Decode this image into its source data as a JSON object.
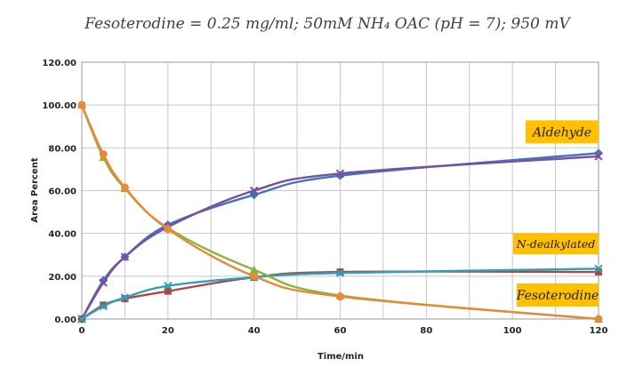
{
  "chart_data": {
    "type": "line",
    "title": "Fesoterodine = 0.25 mg/ml; 50mM NH₄ OAC (pH = 7); 950 mV",
    "xlabel": "Time/min",
    "ylabel": "Area Percent",
    "xlim": [
      0,
      120
    ],
    "ylim": [
      0,
      120
    ],
    "xticks": [
      "0",
      "20",
      "40",
      "60",
      "80",
      "100",
      "120"
    ],
    "yticks": [
      "0.00",
      "20.00",
      "40.00",
      "60.00",
      "80.00",
      "100.00",
      "120.00"
    ],
    "grid": true,
    "series": [
      {
        "name": "Aldehyde (diamond)",
        "color": "#3f74c0",
        "marker": "diamond",
        "x": [
          0,
          5,
          10,
          20,
          40,
          60,
          120
        ],
        "y": [
          0,
          18,
          29,
          44,
          58,
          67,
          77.5
        ]
      },
      {
        "name": "Aldehyde (cross)",
        "color": "#7b4fa0",
        "marker": "x",
        "x": [
          0,
          5,
          10,
          20,
          40,
          60,
          120
        ],
        "y": [
          0,
          17,
          29,
          43,
          60,
          68,
          76
        ]
      },
      {
        "name": "N-dealkylated (square)",
        "color": "#b04545",
        "marker": "square",
        "x": [
          0,
          5,
          10,
          20,
          40,
          60,
          120
        ],
        "y": [
          0,
          6.5,
          9.5,
          13,
          19.5,
          22,
          22
        ]
      },
      {
        "name": "N-dealkylated (cross)",
        "color": "#2fa0b8",
        "marker": "x",
        "x": [
          0,
          5,
          10,
          20,
          40,
          60,
          120
        ],
        "y": [
          0,
          6,
          10,
          15.5,
          19.5,
          21.5,
          23.5
        ]
      },
      {
        "name": "Fesoterodine (triangle)",
        "color": "#8db03e",
        "marker": "triangle",
        "x": [
          0,
          5,
          10,
          20,
          40,
          60,
          120
        ],
        "y": [
          100,
          75.5,
          61,
          42.5,
          23,
          11,
          0
        ]
      },
      {
        "name": "Fesoterodine (circle)",
        "color": "#e8893a",
        "marker": "circle",
        "x": [
          0,
          5,
          10,
          20,
          40,
          60,
          120
        ],
        "y": [
          100,
          77,
          61.5,
          42,
          20,
          10.5,
          0
        ]
      }
    ],
    "annotations": [
      {
        "text": "Aldehyde",
        "x_data": 120,
        "y_data": 77.5
      },
      {
        "text": "N-dealkylated",
        "x_data": 120,
        "y_data": 24
      },
      {
        "text": "Fesoterodine",
        "x_data": 120,
        "y_data": 0
      }
    ],
    "annotation_fill": "#ffc000"
  }
}
